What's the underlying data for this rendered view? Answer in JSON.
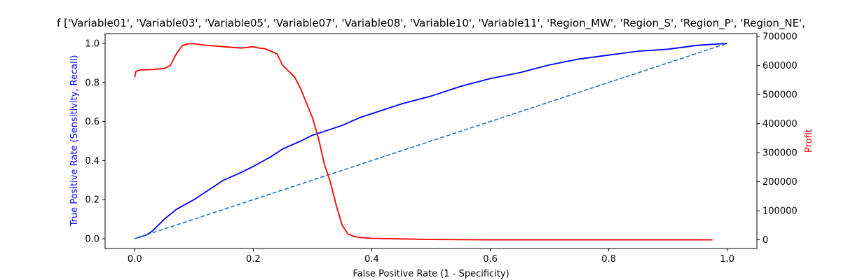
{
  "chart_data": {
    "type": "line",
    "title": "f ['Variable01', 'Variable03', 'Variable05', 'Variable07', 'Variable08', 'Variable10', 'Variable11', 'Region_MW', 'Region_S', 'Region_P', 'Region_NE',",
    "xlabel": "False Positive Rate (1 - Specificity)",
    "ylabel_left": "True Positive Rate (Sensitivity, Recall)",
    "ylabel_right": "Profit",
    "xlim": [
      -0.05,
      1.05
    ],
    "ylim_left": [
      -0.05,
      1.05
    ],
    "ylim_right": [
      -30000,
      710000
    ],
    "xticks": [
      "0.0",
      "0.2",
      "0.4",
      "0.6",
      "0.8",
      "1.0"
    ],
    "yticks_left": [
      "0.0",
      "0.2",
      "0.4",
      "0.6",
      "0.8",
      "1.0"
    ],
    "yticks_right": [
      "0",
      "100000",
      "200000",
      "300000",
      "400000",
      "500000",
      "600000",
      "700000"
    ],
    "colors": {
      "roc": "#0000ff",
      "diagonal": "#1f77b4",
      "profit": "#ff0000",
      "ylabel_left": "#0000ff",
      "ylabel_right": "#ff0000"
    },
    "series": [
      {
        "axis": "left",
        "style": "solid",
        "x": [
          0.0,
          0.02,
          0.03,
          0.05,
          0.07,
          0.1,
          0.12,
          0.15,
          0.18,
          0.2,
          0.23,
          0.25,
          0.28,
          0.3,
          0.33,
          0.35,
          0.38,
          0.4,
          0.45,
          0.5,
          0.55,
          0.6,
          0.65,
          0.7,
          0.75,
          0.8,
          0.85,
          0.9,
          0.95,
          1.0
        ],
        "y": [
          0.0,
          0.02,
          0.04,
          0.1,
          0.15,
          0.2,
          0.24,
          0.3,
          0.34,
          0.37,
          0.42,
          0.46,
          0.5,
          0.53,
          0.56,
          0.58,
          0.62,
          0.64,
          0.69,
          0.73,
          0.78,
          0.82,
          0.85,
          0.89,
          0.92,
          0.94,
          0.96,
          0.97,
          0.99,
          1.0
        ]
      },
      {
        "axis": "left",
        "style": "dashed",
        "x": [
          0.0,
          1.0
        ],
        "y": [
          0.0,
          1.0
        ]
      },
      {
        "axis": "right",
        "style": "solid",
        "x": [
          0.0,
          0.002,
          0.01,
          0.03,
          0.05,
          0.06,
          0.07,
          0.08,
          0.09,
          0.1,
          0.12,
          0.15,
          0.18,
          0.2,
          0.21,
          0.22,
          0.24,
          0.25,
          0.27,
          0.28,
          0.3,
          0.31,
          0.32,
          0.33,
          0.34,
          0.35,
          0.36,
          0.37,
          0.38,
          0.4,
          0.45,
          0.5,
          0.6,
          0.8,
          0.975
        ],
        "y": [
          560000,
          580000,
          585000,
          586000,
          590000,
          600000,
          640000,
          668000,
          675000,
          675000,
          670000,
          665000,
          660000,
          665000,
          660000,
          658000,
          640000,
          600000,
          560000,
          520000,
          420000,
          350000,
          260000,
          200000,
          120000,
          50000,
          20000,
          12000,
          8000,
          5000,
          3000,
          1000,
          0,
          0,
          0
        ]
      }
    ]
  }
}
